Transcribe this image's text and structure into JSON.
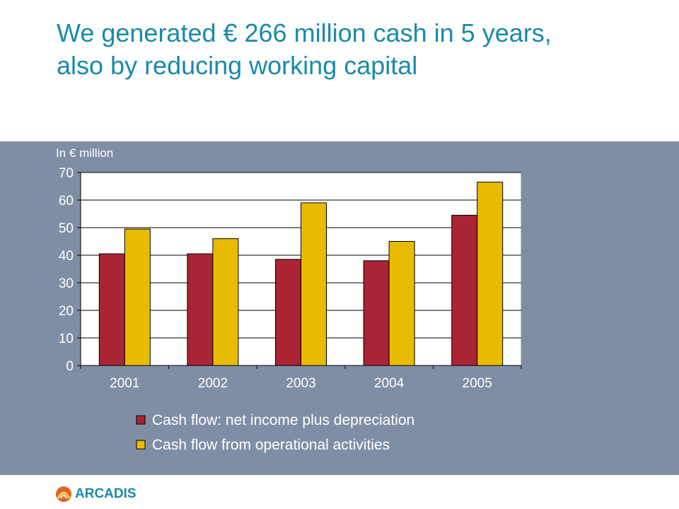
{
  "slide": {
    "title_line1": "We generated € 266 million cash in 5 years,",
    "title_line2": "also by reducing working capital",
    "unit_label": "In € million",
    "logo_text": "ARCADIS"
  },
  "colors": {
    "title": "#1a8aa8",
    "band": "#7f8ea4",
    "series1": "#a92434",
    "series2": "#e8bb00",
    "plot_bg": "#ffffff"
  },
  "chart_data": {
    "type": "bar",
    "categories": [
      "2001",
      "2002",
      "2003",
      "2004",
      "2005"
    ],
    "series": [
      {
        "name": "Cash flow: net income plus depreciation",
        "values": [
          40.5,
          40.5,
          38.5,
          38,
          54.5
        ]
      },
      {
        "name": "Cash flow from operational activities",
        "values": [
          49.5,
          46,
          59,
          45,
          66.5
        ]
      }
    ],
    "ylim": [
      0,
      70
    ],
    "yticks": [
      0,
      10,
      20,
      30,
      40,
      50,
      60,
      70
    ],
    "grid": true,
    "legend_position": "bottom"
  }
}
